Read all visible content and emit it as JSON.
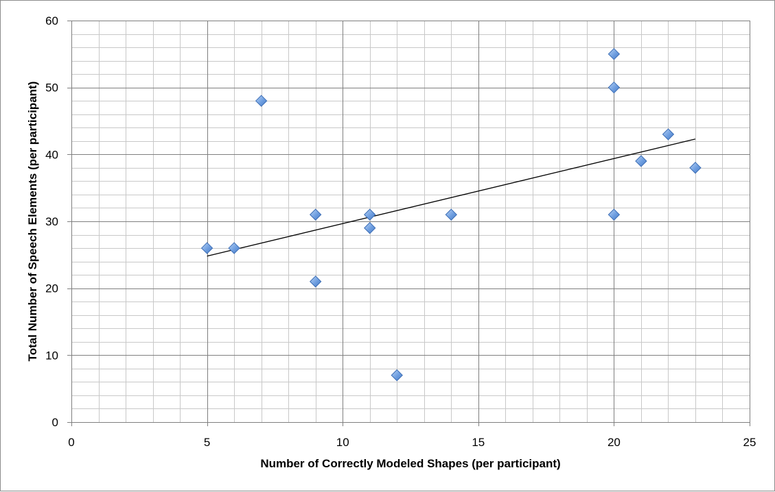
{
  "chart_data": {
    "type": "scatter",
    "title": "",
    "xlabel": "Number of Correctly Modeled Shapes (per participant)",
    "ylabel": "Total Number of Speech Elements (per participant)",
    "xlim": [
      0,
      25
    ],
    "ylim": [
      0,
      60
    ],
    "x_major_ticks": [
      0,
      5,
      10,
      15,
      20,
      25
    ],
    "y_major_ticks": [
      0,
      10,
      20,
      30,
      40,
      50,
      60
    ],
    "x_minor_step": 1,
    "y_minor_step": 2,
    "grid": true,
    "legend": "none",
    "marker": "diamond",
    "colors": {
      "marker_fill": "#6e9ee0",
      "marker_stroke": "#3b6db5",
      "trendline": "#000000",
      "grid_major": "#7f7f7f",
      "grid_minor": "#c8c8c8"
    },
    "series": [
      {
        "points": [
          {
            "x": 5,
            "y": 26
          },
          {
            "x": 6,
            "y": 26
          },
          {
            "x": 7,
            "y": 48
          },
          {
            "x": 9,
            "y": 31
          },
          {
            "x": 9,
            "y": 21
          },
          {
            "x": 11,
            "y": 31
          },
          {
            "x": 11,
            "y": 29
          },
          {
            "x": 12,
            "y": 7
          },
          {
            "x": 14,
            "y": 31
          },
          {
            "x": 20,
            "y": 55
          },
          {
            "x": 20,
            "y": 50
          },
          {
            "x": 20,
            "y": 31
          },
          {
            "x": 21,
            "y": 39
          },
          {
            "x": 22,
            "y": 43
          },
          {
            "x": 23,
            "y": 38
          }
        ]
      }
    ],
    "trendline": {
      "type": "linear",
      "from": {
        "x": 5,
        "y": 24.8
      },
      "to": {
        "x": 23,
        "y": 42.3
      }
    }
  }
}
